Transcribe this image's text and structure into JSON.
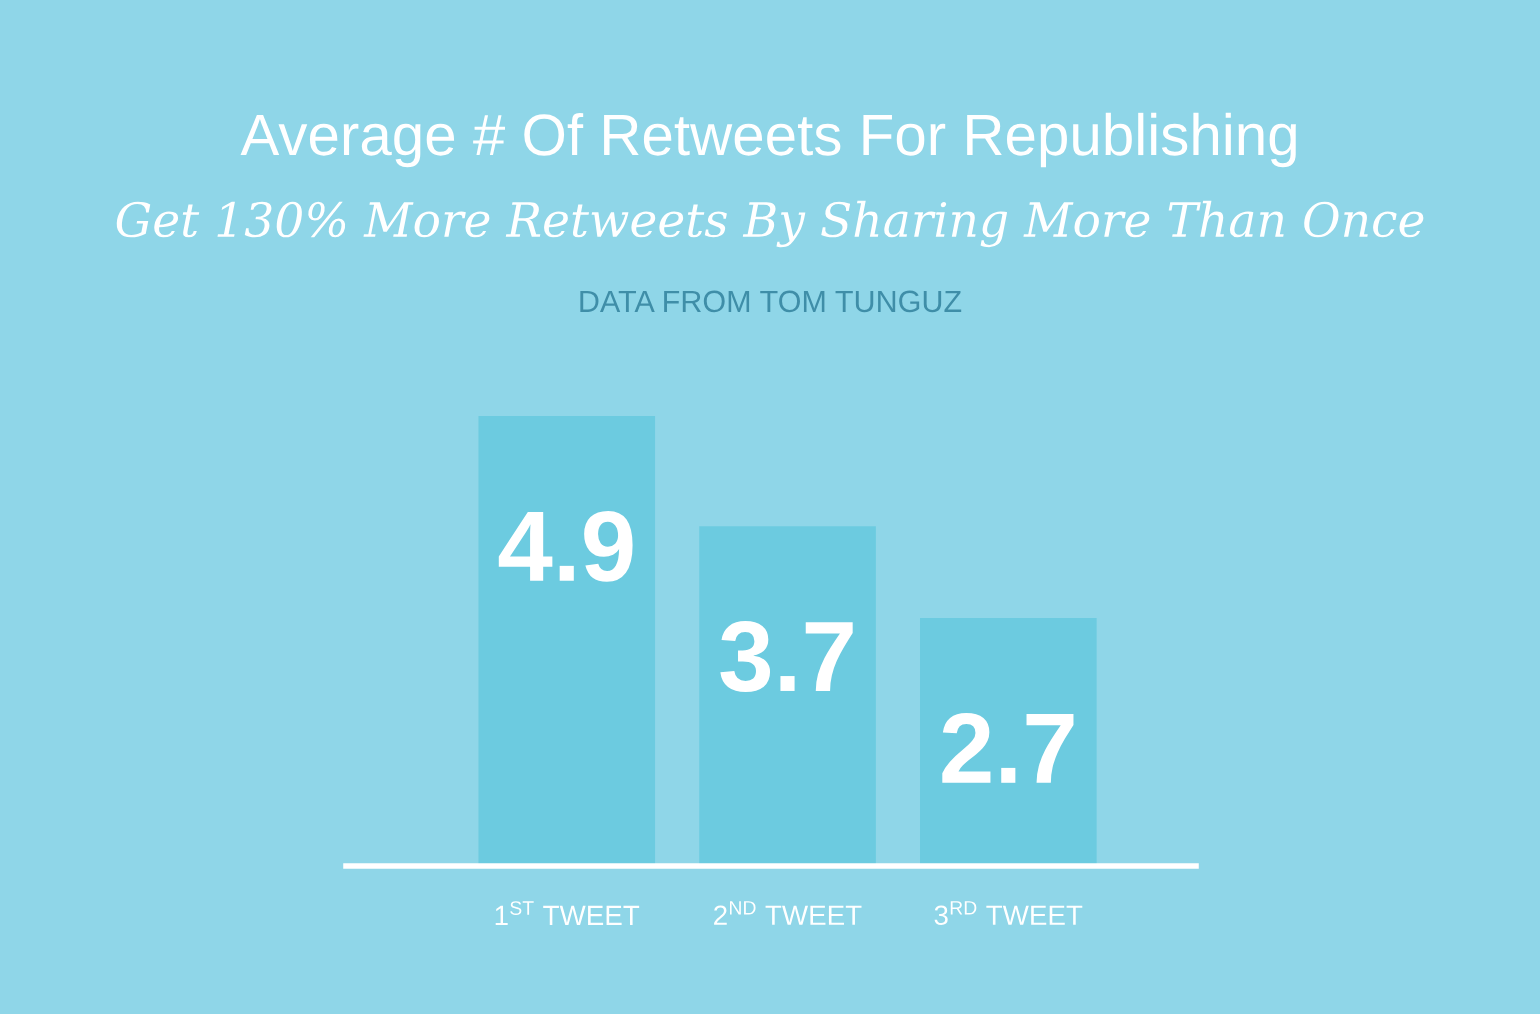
{
  "chart_data": {
    "type": "bar",
    "title": "Average # Of Retweets For Republishing",
    "subtitle": "Get 130% More Retweets By Sharing More Than Once",
    "annotations": [
      "DATA FROM TOM TUNGUZ"
    ],
    "categories": [
      "1$^{ST}$ TWEET",
      "2$^{ND}$ TWEET",
      "3$^{RD}$ TWEET"
    ],
    "values": [
      4.9,
      3.7,
      2.7
    ],
    "color": "#6ccbe0",
    "data_labels": true,
    "grid": false,
    "legend": false
  }
}
